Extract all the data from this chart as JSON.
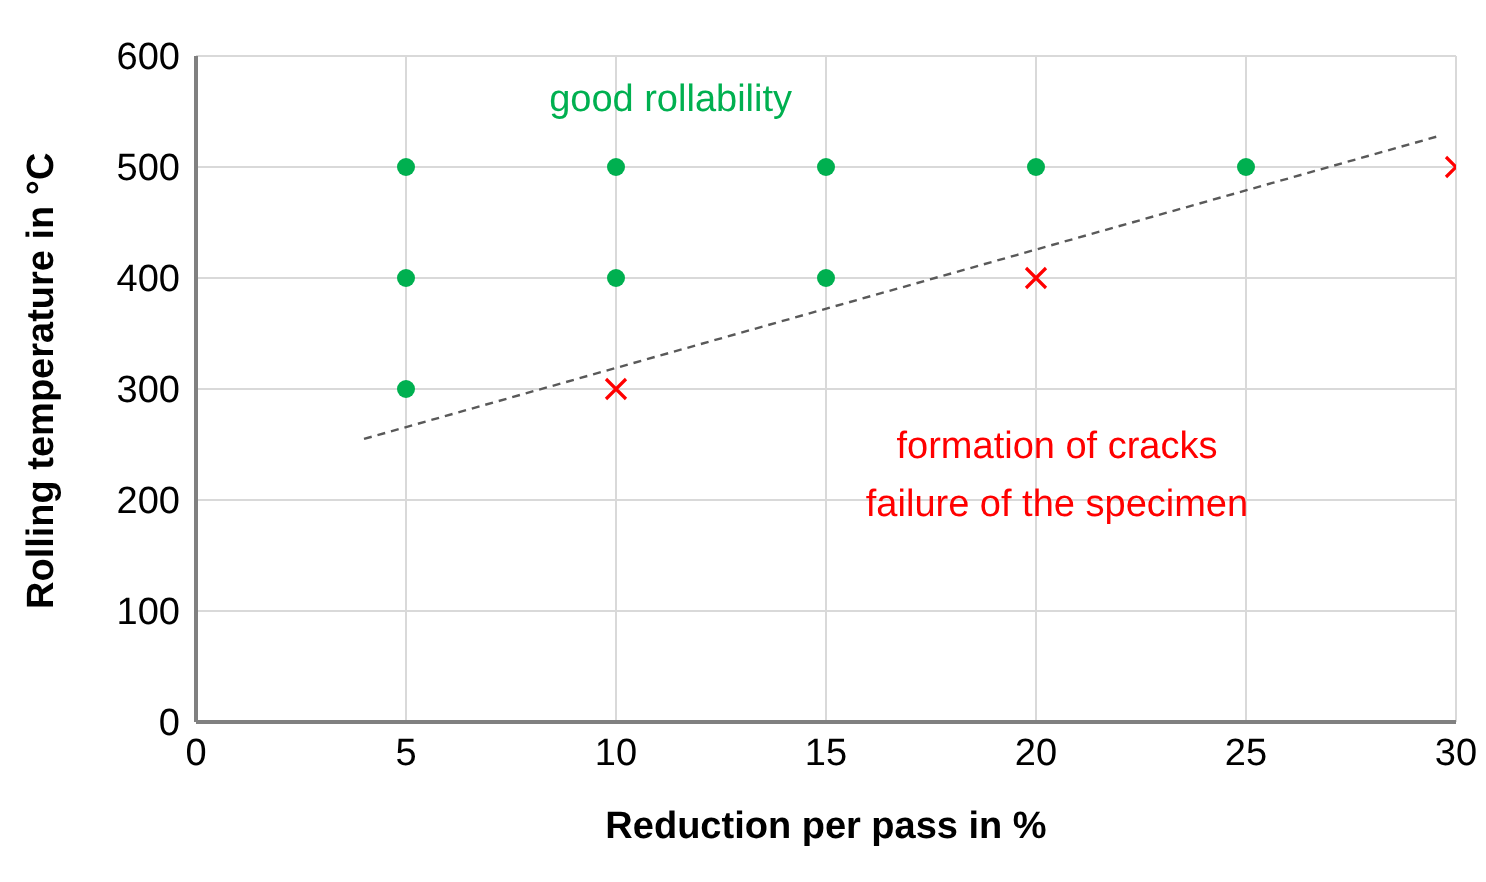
{
  "chart_data": {
    "type": "scatter",
    "xlabel": "Reduction per pass in %",
    "ylabel": "Rolling temperature in °C",
    "xlim": [
      0,
      30
    ],
    "xticks": [
      0,
      5,
      10,
      15,
      20,
      25,
      30
    ],
    "ylim": [
      0,
      600
    ],
    "yticks": [
      0,
      100,
      200,
      300,
      400,
      500,
      600
    ],
    "grid": true,
    "series": [
      {
        "marker": "circle",
        "color": "#00b050",
        "x": [
          5,
          5,
          5,
          10,
          10,
          15,
          15,
          20,
          25
        ],
        "values": [
          500,
          400,
          300,
          500,
          400,
          500,
          400,
          500,
          500
        ]
      },
      {
        "marker": "cross",
        "color": "#ff0000",
        "x": [
          10,
          20,
          30
        ],
        "values": [
          300,
          400,
          500
        ]
      },
      {
        "type": "line",
        "line_style": "dashed",
        "marker": "none",
        "color": "#595959",
        "x": [
          4,
          29.6
        ],
        "values": [
          255,
          528
        ]
      }
    ],
    "annotations": [
      "good rollability",
      "formation of cracks",
      "failure of the specimen"
    ]
  }
}
